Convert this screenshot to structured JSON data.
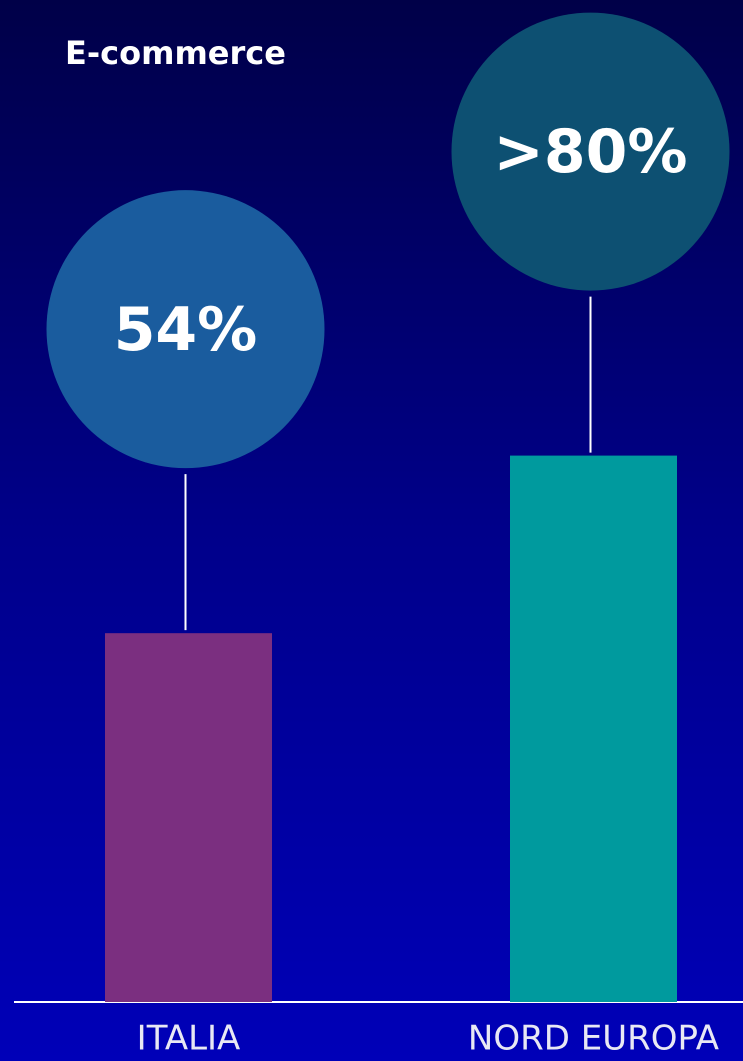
{
  "chart_data": {
    "type": "bar",
    "title": "E-commerce",
    "categories": [
      "ITALIA",
      "NORD EUROPA"
    ],
    "values": [
      54,
      80
    ],
    "value_labels": [
      "54%",
      ">80%"
    ],
    "colors": [
      "#7b2f80",
      "#009a9e"
    ],
    "label_colors": [
      "#1a5c9e",
      "#0d5072"
    ]
  }
}
